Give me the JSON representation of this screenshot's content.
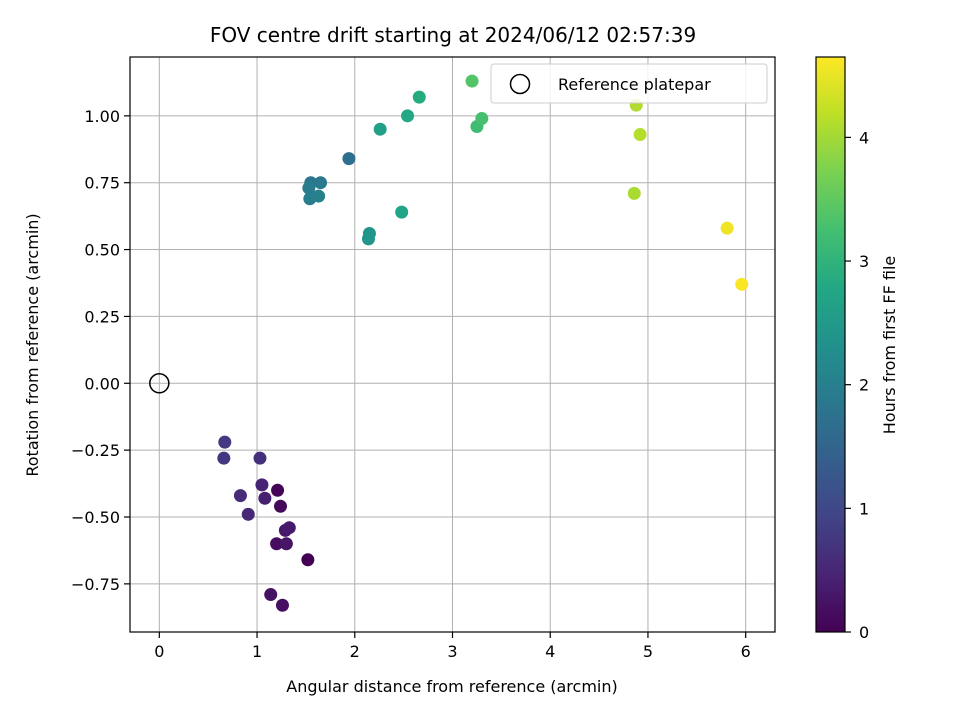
{
  "chart_data": {
    "type": "scatter",
    "title": "FOV centre drift starting at 2024/06/12 02:57:39",
    "xlabel": "Angular distance from reference (arcmin)",
    "ylabel": "Rotation from reference (arcmin)",
    "xlim": [
      -0.3,
      6.3
    ],
    "ylim": [
      -0.93,
      1.22
    ],
    "xticks": [
      0,
      1,
      2,
      3,
      4,
      5,
      6
    ],
    "xtick_labels": [
      "0",
      "1",
      "2",
      "3",
      "4",
      "5",
      "6"
    ],
    "yticks": [
      -0.75,
      -0.5,
      -0.25,
      0.0,
      0.25,
      0.5,
      0.75,
      1.0
    ],
    "ytick_labels": [
      "−0.75",
      "−0.50",
      "−0.25",
      "0.00",
      "0.25",
      "0.50",
      "0.75",
      "1.00"
    ],
    "grid": true,
    "colormap": "viridis",
    "colorbar": {
      "label": "Hours from first FF file",
      "range": [
        0,
        4.65
      ],
      "ticks": [
        0,
        1,
        2,
        3,
        4
      ],
      "tick_labels": [
        "0",
        "1",
        "2",
        "3",
        "4"
      ]
    },
    "reference_point": {
      "x": 0.0,
      "y": 0.0
    },
    "legend": {
      "position": "top-right",
      "entries": [
        {
          "label": "Reference platepar",
          "marker": "open-circle"
        }
      ]
    },
    "points": [
      {
        "x": 1.52,
        "y": -0.66,
        "c": 0.0
      },
      {
        "x": 1.21,
        "y": -0.4,
        "c": 0.05
      },
      {
        "x": 1.24,
        "y": -0.46,
        "c": 0.1
      },
      {
        "x": 1.2,
        "y": -0.6,
        "c": 0.15
      },
      {
        "x": 1.26,
        "y": -0.83,
        "c": 0.18
      },
      {
        "x": 1.14,
        "y": -0.79,
        "c": 0.22
      },
      {
        "x": 1.3,
        "y": -0.6,
        "c": 0.26
      },
      {
        "x": 1.29,
        "y": -0.55,
        "c": 0.3
      },
      {
        "x": 1.33,
        "y": -0.54,
        "c": 0.34
      },
      {
        "x": 1.08,
        "y": -0.43,
        "c": 0.4
      },
      {
        "x": 1.05,
        "y": -0.38,
        "c": 0.46
      },
      {
        "x": 0.91,
        "y": -0.49,
        "c": 0.52
      },
      {
        "x": 0.83,
        "y": -0.42,
        "c": 0.58
      },
      {
        "x": 1.03,
        "y": -0.28,
        "c": 0.64
      },
      {
        "x": 0.66,
        "y": -0.28,
        "c": 0.72
      },
      {
        "x": 0.67,
        "y": -0.22,
        "c": 0.78
      },
      {
        "x": 1.94,
        "y": 0.84,
        "c": 1.7
      },
      {
        "x": 1.55,
        "y": 0.75,
        "c": 1.82
      },
      {
        "x": 1.65,
        "y": 0.75,
        "c": 1.88
      },
      {
        "x": 1.53,
        "y": 0.73,
        "c": 1.92
      },
      {
        "x": 1.54,
        "y": 0.69,
        "c": 1.98
      },
      {
        "x": 1.63,
        "y": 0.7,
        "c": 2.02
      },
      {
        "x": 2.15,
        "y": 0.56,
        "c": 2.38
      },
      {
        "x": 2.14,
        "y": 0.54,
        "c": 2.42
      },
      {
        "x": 2.26,
        "y": 0.95,
        "c": 2.62
      },
      {
        "x": 2.48,
        "y": 0.64,
        "c": 2.7
      },
      {
        "x": 2.54,
        "y": 1.0,
        "c": 2.78
      },
      {
        "x": 2.66,
        "y": 1.07,
        "c": 2.85
      },
      {
        "x": 3.25,
        "y": 0.96,
        "c": 3.2
      },
      {
        "x": 3.3,
        "y": 0.99,
        "c": 3.27
      },
      {
        "x": 3.2,
        "y": 1.13,
        "c": 3.38
      },
      {
        "x": 4.86,
        "y": 0.71,
        "c": 4.05
      },
      {
        "x": 4.88,
        "y": 1.04,
        "c": 4.1
      },
      {
        "x": 4.92,
        "y": 0.93,
        "c": 4.12
      },
      {
        "x": 5.81,
        "y": 0.58,
        "c": 4.55
      },
      {
        "x": 5.96,
        "y": 0.37,
        "c": 4.62
      }
    ]
  }
}
